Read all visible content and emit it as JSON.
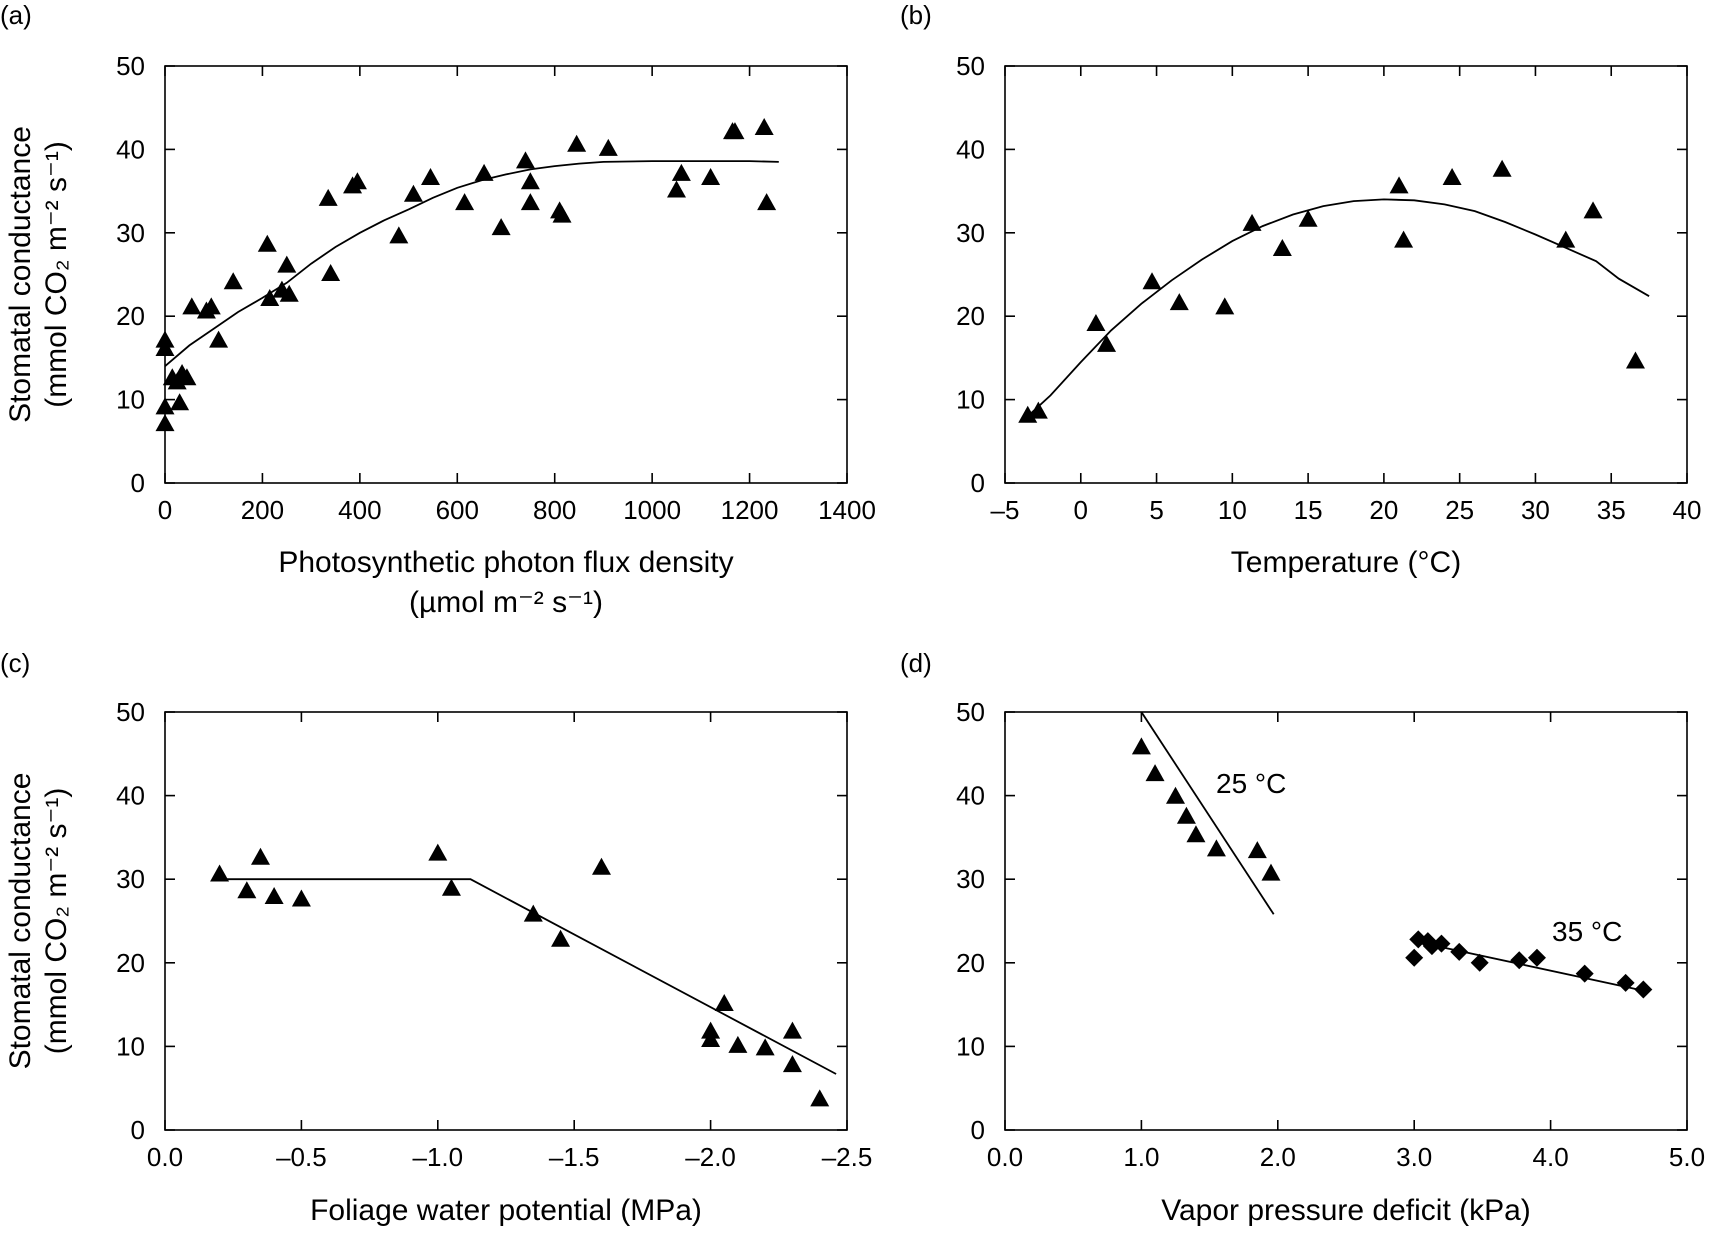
{
  "chart_data": [
    {
      "panel": "(a)",
      "type": "scatter",
      "xlabel_lines": [
        "Photosynthetic photon flux density",
        "(µmol m⁻² s⁻¹)"
      ],
      "ylabel_lines": [
        "Stomatal conductance",
        "(mmol CO₂ m⁻² s⁻¹)"
      ],
      "xlim": [
        0,
        1400
      ],
      "ylim": [
        0,
        50
      ],
      "xticks": [
        0,
        200,
        400,
        600,
        800,
        1000,
        1200,
        1400
      ],
      "xtick_labels": [
        "0",
        "200",
        "400",
        "600",
        "800",
        "1000",
        "1200",
        "1400"
      ],
      "yticks": [
        0,
        10,
        20,
        30,
        40,
        50
      ],
      "ytick_labels": [
        "0",
        "10",
        "20",
        "30",
        "40",
        "50"
      ],
      "marker": "triangle",
      "points": [
        [
          0,
          17
        ],
        [
          0,
          16
        ],
        [
          0,
          9
        ],
        [
          0,
          7
        ],
        [
          15,
          12.5
        ],
        [
          25,
          12
        ],
        [
          30,
          9.5
        ],
        [
          35,
          13
        ],
        [
          45,
          12.5
        ],
        [
          55,
          21
        ],
        [
          85,
          20.5
        ],
        [
          95,
          21
        ],
        [
          110,
          17
        ],
        [
          140,
          24
        ],
        [
          210,
          28.5
        ],
        [
          215,
          22
        ],
        [
          240,
          23
        ],
        [
          250,
          26
        ],
        [
          255,
          22.5
        ],
        [
          335,
          34
        ],
        [
          340,
          25
        ],
        [
          385,
          35.5
        ],
        [
          395,
          36
        ],
        [
          480,
          29.5
        ],
        [
          510,
          34.5
        ],
        [
          545,
          36.5
        ],
        [
          615,
          33.5
        ],
        [
          655,
          37
        ],
        [
          690,
          30.5
        ],
        [
          740,
          38.5
        ],
        [
          750,
          36
        ],
        [
          750,
          33.5
        ],
        [
          810,
          32.5
        ],
        [
          815,
          32
        ],
        [
          845,
          40.5
        ],
        [
          910,
          40
        ],
        [
          1050,
          35
        ],
        [
          1060,
          37
        ],
        [
          1120,
          36.5
        ],
        [
          1165,
          42
        ],
        [
          1170,
          42
        ],
        [
          1230,
          42.5
        ],
        [
          1235,
          33.5
        ]
      ],
      "fit_line": [
        [
          0,
          14
        ],
        [
          50,
          16.5
        ],
        [
          100,
          18.5
        ],
        [
          150,
          20.5
        ],
        [
          200,
          22.2
        ],
        [
          250,
          24
        ],
        [
          300,
          26.3
        ],
        [
          350,
          28.3
        ],
        [
          400,
          30
        ],
        [
          450,
          31.5
        ],
        [
          500,
          32.8
        ],
        [
          550,
          34.2
        ],
        [
          600,
          35.4
        ],
        [
          650,
          36.3
        ],
        [
          700,
          37
        ],
        [
          750,
          37.6
        ],
        [
          800,
          38
        ],
        [
          850,
          38.3
        ],
        [
          900,
          38.5
        ],
        [
          1000,
          38.6
        ],
        [
          1100,
          38.6
        ],
        [
          1200,
          38.6
        ],
        [
          1260,
          38.5
        ]
      ]
    },
    {
      "panel": "(b)",
      "type": "scatter",
      "xlabel_lines": [
        "Temperature (°C)"
      ],
      "xlim": [
        -5,
        40
      ],
      "ylim": [
        0,
        50
      ],
      "xticks": [
        -5,
        0,
        5,
        10,
        15,
        20,
        25,
        30,
        35,
        40
      ],
      "xtick_labels": [
        "–5",
        "0",
        "5",
        "10",
        "15",
        "20",
        "25",
        "30",
        "35",
        "40"
      ],
      "yticks": [
        0,
        10,
        20,
        30,
        40,
        50
      ],
      "ytick_labels": [
        "0",
        "10",
        "20",
        "30",
        "40",
        "50"
      ],
      "marker": "triangle",
      "points": [
        [
          -3.5,
          8
        ],
        [
          -2.8,
          8.5
        ],
        [
          1,
          19
        ],
        [
          1.7,
          16.5
        ],
        [
          4.7,
          24
        ],
        [
          6.5,
          21.5
        ],
        [
          9.5,
          21
        ],
        [
          11.3,
          31
        ],
        [
          13.3,
          28
        ],
        [
          15,
          31.5
        ],
        [
          21,
          35.5
        ],
        [
          21.3,
          29
        ],
        [
          24.5,
          36.5
        ],
        [
          27.8,
          37.5
        ],
        [
          32,
          29
        ],
        [
          33.8,
          32.5
        ],
        [
          36.6,
          14.5
        ]
      ],
      "fit_line": [
        [
          -3.5,
          8
        ],
        [
          -2,
          10.5
        ],
        [
          0,
          14.5
        ],
        [
          2,
          18.3
        ],
        [
          4,
          21.5
        ],
        [
          6,
          24.3
        ],
        [
          8,
          26.8
        ],
        [
          10,
          29
        ],
        [
          12,
          30.8
        ],
        [
          14,
          32.2
        ],
        [
          16,
          33.2
        ],
        [
          18,
          33.8
        ],
        [
          20,
          34
        ],
        [
          22,
          33.9
        ],
        [
          24,
          33.4
        ],
        [
          26,
          32.6
        ],
        [
          28,
          31.3
        ],
        [
          30,
          29.8
        ],
        [
          32,
          28.2
        ],
        [
          34,
          26.6
        ],
        [
          35.5,
          24.5
        ],
        [
          37.5,
          22.4
        ]
      ]
    },
    {
      "panel": "(c)",
      "type": "scatter",
      "xlabel_lines": [
        "Foliage water potential (MPa)"
      ],
      "ylabel_lines": [
        "Stomatal conductance",
        "(mmol CO₂ m⁻² s⁻¹)"
      ],
      "xlim": [
        0,
        -2.5
      ],
      "ylim": [
        0,
        50
      ],
      "xticks": [
        0,
        -0.5,
        -1.0,
        -1.5,
        -2.0,
        -2.5
      ],
      "xtick_labels": [
        "0.0",
        "–0.5",
        "–1.0",
        "–1.5",
        "–2.0",
        "–2.5"
      ],
      "yticks": [
        0,
        10,
        20,
        30,
        40,
        50
      ],
      "ytick_labels": [
        "0",
        "10",
        "20",
        "30",
        "40",
        "50"
      ],
      "marker": "triangle",
      "points": [
        [
          -0.2,
          30.5
        ],
        [
          -0.3,
          28.5
        ],
        [
          -0.35,
          32.5
        ],
        [
          -0.4,
          27.8
        ],
        [
          -0.5,
          27.5
        ],
        [
          -1.0,
          33
        ],
        [
          -1.05,
          28.8
        ],
        [
          -1.35,
          25.7
        ],
        [
          -1.45,
          22.7
        ],
        [
          -1.6,
          31.3
        ],
        [
          -2.0,
          11.7
        ],
        [
          -2.0,
          10.7
        ],
        [
          -2.05,
          15
        ],
        [
          -2.1,
          10
        ],
        [
          -2.2,
          9.7
        ],
        [
          -2.3,
          11.7
        ],
        [
          -2.3,
          7.7
        ],
        [
          -2.4,
          3.6
        ]
      ],
      "fit_line": [
        [
          -0.2,
          30
        ],
        [
          -1.12,
          30
        ],
        [
          -2.46,
          6.7
        ]
      ]
    },
    {
      "panel": "(d)",
      "type": "scatter",
      "xlabel_lines": [
        "Vapor pressure deficit (kPa)"
      ],
      "xlim": [
        0,
        5
      ],
      "ylim": [
        0,
        50
      ],
      "xticks": [
        0,
        1,
        2,
        3,
        4,
        5
      ],
      "xtick_labels": [
        "0.0",
        "1.0",
        "2.0",
        "3.0",
        "4.0",
        "5.0"
      ],
      "yticks": [
        0,
        10,
        20,
        30,
        40,
        50
      ],
      "ytick_labels": [
        "0",
        "10",
        "20",
        "30",
        "40",
        "50"
      ],
      "series": [
        {
          "name": "25 °C",
          "marker": "triangle",
          "points": [
            [
              1.0,
              45.7
            ],
            [
              1.1,
              42.5
            ],
            [
              1.25,
              39.8
            ],
            [
              1.33,
              37.4
            ],
            [
              1.4,
              35.2
            ],
            [
              1.55,
              33.5
            ],
            [
              1.85,
              33.3
            ],
            [
              1.95,
              30.6
            ]
          ],
          "fit_line": [
            [
              1.0,
              50
            ],
            [
              1.97,
              25.8
            ]
          ]
        },
        {
          "name": "35 °C",
          "marker": "diamond",
          "points": [
            [
              3.0,
              20.6
            ],
            [
              3.03,
              22.8
            ],
            [
              3.1,
              22.6
            ],
            [
              3.13,
              22.0
            ],
            [
              3.2,
              22.3
            ],
            [
              3.33,
              21.3
            ],
            [
              3.48,
              20.0
            ],
            [
              3.77,
              20.3
            ],
            [
              3.9,
              20.6
            ],
            [
              4.25,
              18.7
            ],
            [
              4.55,
              17.6
            ],
            [
              4.68,
              16.8
            ]
          ],
          "fit_line": [
            [
              3.05,
              22.4
            ],
            [
              4.7,
              16.6
            ]
          ]
        }
      ]
    }
  ]
}
